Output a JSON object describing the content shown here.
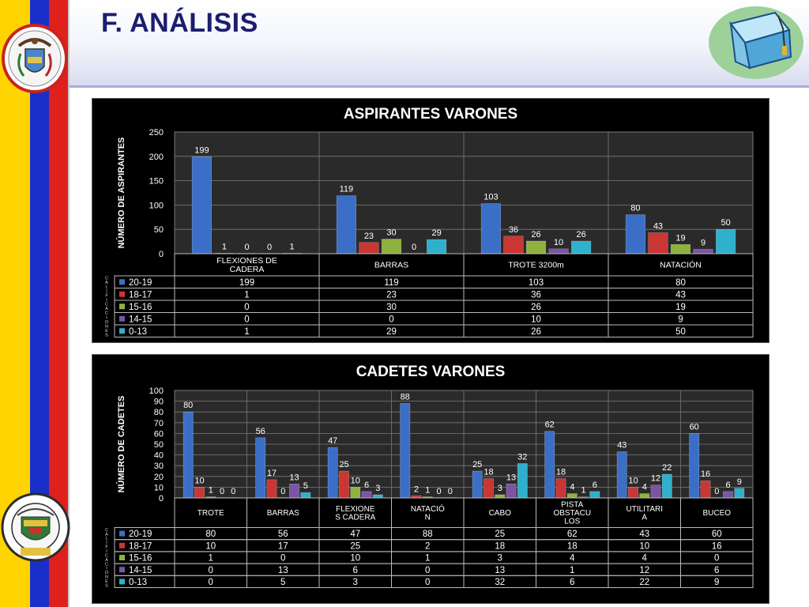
{
  "slide": {
    "title": "F.    ANÁLISIS"
  },
  "logos": {
    "ecuador_seal_text": "",
    "espe_text_top": "ESCUELA POLITECNICA DEL EJERCITO",
    "espe_text_bottom": "ECUADOR"
  },
  "colors": {
    "s1": "#3b6fc7",
    "s2": "#c93634",
    "s3": "#8fb23f",
    "s4": "#7a54a6",
    "s5": "#2fb0cc"
  },
  "chart_data": [
    {
      "type": "bar",
      "title": "ASPIRANTES VARONES",
      "ylabel": "NÚMERO DE ASPIRANTES",
      "row_header_label": "CALIFICACIONES",
      "ylim": [
        0,
        250
      ],
      "yticks": [
        0,
        50,
        100,
        150,
        200,
        250
      ],
      "categories": [
        "FLEXIONES DE CADERA",
        "BARRAS",
        "TROTE 3200m",
        "NATACIÓN"
      ],
      "category_lines": [
        [
          "FLEXIONES DE",
          "CADERA"
        ],
        [
          "BARRAS"
        ],
        [
          "TROTE 3200m"
        ],
        [
          "NATACIÓN"
        ]
      ],
      "series": [
        {
          "name": "20-19",
          "values": [
            199,
            119,
            103,
            80
          ]
        },
        {
          "name": "18-17",
          "values": [
            1,
            23,
            36,
            43
          ]
        },
        {
          "name": "15-16",
          "values": [
            0,
            30,
            26,
            19
          ]
        },
        {
          "name": "14-15",
          "values": [
            0,
            0,
            10,
            9
          ]
        },
        {
          "name": "0-13",
          "values": [
            1,
            29,
            26,
            50
          ]
        }
      ],
      "grid": true,
      "legend": "data-table"
    },
    {
      "type": "bar",
      "title": "CADETES VARONES",
      "ylabel": "NÚMERO DE CADETES",
      "row_header_label": "CALIFICACIONES",
      "ylim": [
        0,
        100
      ],
      "yticks": [
        0,
        10,
        20,
        30,
        40,
        50,
        60,
        70,
        80,
        90,
        100
      ],
      "categories": [
        "TROTE",
        "BARRAS",
        "FLEXIONES CADERA",
        "NATACIÓN",
        "CABO",
        "PISTA OBSTACULOS",
        "UTILITARIA",
        "BUCEO"
      ],
      "category_lines": [
        [
          "TROTE"
        ],
        [
          "BARRAS"
        ],
        [
          "FLEXIONE",
          "S CADERA"
        ],
        [
          "NATACIÓ",
          "N"
        ],
        [
          "CABO"
        ],
        [
          "PISTA",
          "OBSTACU",
          "LOS"
        ],
        [
          "UTILITARI",
          "A"
        ],
        [
          "BUCEO"
        ]
      ],
      "series": [
        {
          "name": "20-19",
          "values": [
            80,
            56,
            47,
            88,
            25,
            62,
            43,
            60
          ]
        },
        {
          "name": "18-17",
          "values": [
            10,
            17,
            25,
            2,
            18,
            18,
            10,
            16
          ]
        },
        {
          "name": "15-16",
          "values": [
            1,
            0,
            10,
            1,
            3,
            4,
            4,
            0
          ]
        },
        {
          "name": "14-15",
          "values": [
            0,
            13,
            6,
            0,
            13,
            1,
            12,
            6
          ]
        },
        {
          "name": "0-13",
          "values": [
            0,
            5,
            3,
            0,
            32,
            6,
            22,
            9
          ]
        }
      ],
      "grid": true,
      "legend": "data-table"
    }
  ]
}
